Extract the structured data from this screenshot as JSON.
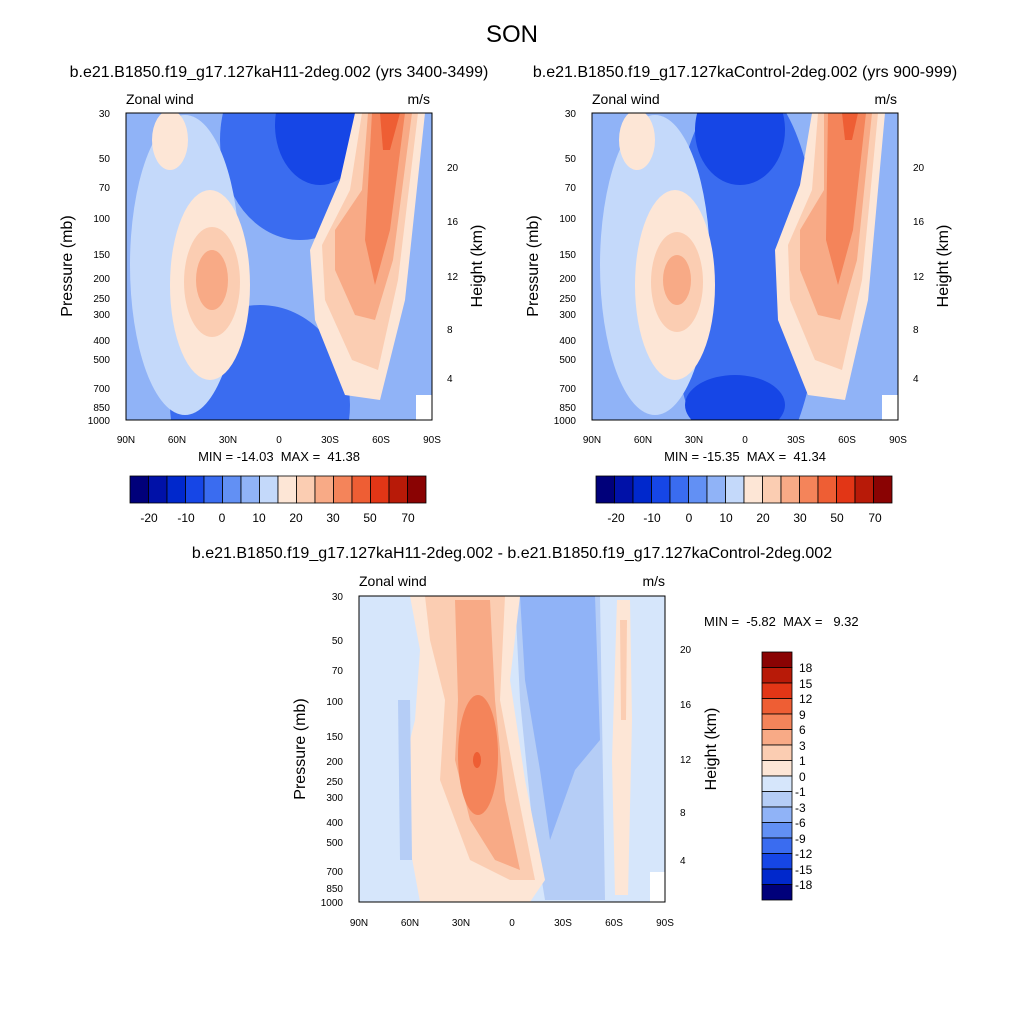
{
  "page": {
    "season": "SON"
  },
  "chart_data": [
    {
      "type": "heatmap",
      "title": "b.e21.B1850.f19_g17.127kaH11-2deg.002 (yrs 3400-3499)",
      "left_label": "Zonal wind",
      "right_label": "m/s",
      "xlabel": "",
      "ylabel": "Pressure (mb)",
      "y2label": "Height (km)",
      "x_ticks": [
        "90N",
        "60N",
        "30N",
        "0",
        "30S",
        "60S",
        "90S"
      ],
      "y_ticks": [
        30,
        50,
        70,
        100,
        150,
        200,
        250,
        300,
        400,
        500,
        700,
        850,
        1000
      ],
      "y2_ticks": [
        20,
        16,
        12,
        8,
        4
      ],
      "stats": "MIN = -14.03  MAX =  41.38",
      "min": -14.03,
      "max": 41.38,
      "colorbar_levels": [
        -20,
        -10,
        0,
        10,
        20,
        30,
        50,
        70
      ],
      "colorbar_orientation": "horizontal"
    },
    {
      "type": "heatmap",
      "title": "b.e21.B1850.f19_g17.127kaControl-2deg.002 (yrs 900-999)",
      "left_label": "Zonal wind",
      "right_label": "m/s",
      "xlabel": "",
      "ylabel": "Pressure (mb)",
      "y2label": "Height (km)",
      "x_ticks": [
        "90N",
        "60N",
        "30N",
        "0",
        "30S",
        "60S",
        "90S"
      ],
      "y_ticks": [
        30,
        50,
        70,
        100,
        150,
        200,
        250,
        300,
        400,
        500,
        700,
        850,
        1000
      ],
      "y2_ticks": [
        20,
        16,
        12,
        8,
        4
      ],
      "stats": "MIN = -15.35  MAX =  41.34",
      "min": -15.35,
      "max": 41.34,
      "colorbar_levels": [
        -20,
        -10,
        0,
        10,
        20,
        30,
        50,
        70
      ],
      "colorbar_orientation": "horizontal"
    },
    {
      "type": "heatmap",
      "title": "b.e21.B1850.f19_g17.127kaH11-2deg.002 - b.e21.B1850.f19_g17.127kaControl-2deg.002",
      "left_label": "Zonal wind",
      "right_label": "m/s",
      "xlabel": "",
      "ylabel": "Pressure (mb)",
      "y2label": "Height (km)",
      "x_ticks": [
        "90N",
        "60N",
        "30N",
        "0",
        "30S",
        "60S",
        "90S"
      ],
      "y_ticks": [
        30,
        50,
        70,
        100,
        150,
        200,
        250,
        300,
        400,
        500,
        700,
        850,
        1000
      ],
      "y2_ticks": [
        20,
        16,
        12,
        8,
        4
      ],
      "stats": "MIN =  -5.82  MAX =   9.32",
      "min": -5.82,
      "max": 9.32,
      "colorbar_levels": [
        18,
        15,
        12,
        9,
        6,
        3,
        1,
        0,
        -1,
        -3,
        -6,
        -9,
        -12,
        -15,
        -18
      ],
      "colorbar_orientation": "vertical"
    }
  ],
  "palette": {
    "blue_red_16": [
      "#00007a",
      "#0011a8",
      "#0028cc",
      "#1646e6",
      "#3a6cf0",
      "#6290f4",
      "#90b3f7",
      "#c4d9fa",
      "#fde6d6",
      "#fbcdb2",
      "#f8aa86",
      "#f4845a",
      "#ee5e34",
      "#e23616",
      "#b81a08",
      "#8a0303"
    ],
    "diff_16": [
      "#8a0303",
      "#b81a08",
      "#e23616",
      "#ee5e34",
      "#f4845a",
      "#f8aa86",
      "#fbcdb2",
      "#fde6d6",
      "#d6e6fb",
      "#b5cdf6",
      "#90b3f7",
      "#6290f4",
      "#3a6cf0",
      "#1646e6",
      "#0028cc",
      "#00007a"
    ]
  }
}
